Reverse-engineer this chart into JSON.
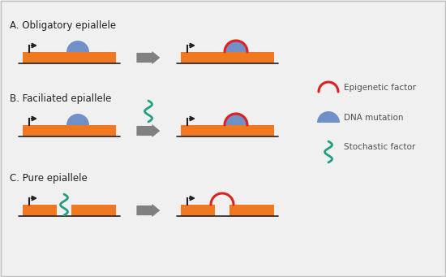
{
  "bg_color": "#f0f0f0",
  "orange_color": "#f07820",
  "blue_color": "#7090c8",
  "red_color": "#e02020",
  "teal_color": "#20a080",
  "arrow_color": "#808080",
  "black_color": "#202020",
  "title_A": "A. Obligatory epiallele",
  "title_B": "B. Faciliated epiallele",
  "title_C": "C. Pure epiallele",
  "legend_items": [
    "Epigenetic factor",
    "DNA mutation",
    "Stochastic factor"
  ],
  "font_size_title": 8.5,
  "font_size_legend": 7.5
}
